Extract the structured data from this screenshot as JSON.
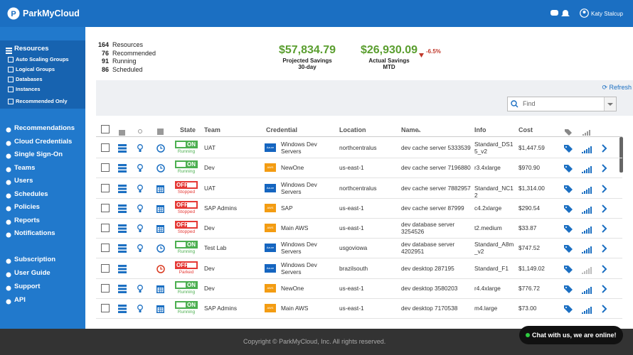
{
  "header": {
    "brand": "ParkMyCloud",
    "user": "Katy Stalcup"
  },
  "sidebar": {
    "resources": {
      "title": "Resources",
      "items": [
        "Auto Scaling Groups",
        "Logical Groups",
        "Databases",
        "Instances"
      ],
      "filter": "Recommended Only"
    },
    "nav": [
      "Recommendations",
      "Cloud Credentials",
      "Single Sign-On",
      "Teams",
      "Users",
      "Schedules",
      "Policies",
      "Reports",
      "Notifications"
    ],
    "help": [
      "Subscription",
      "User Guide",
      "Support",
      "API"
    ]
  },
  "summary": {
    "counts": [
      {
        "value": 164,
        "label": "Resources"
      },
      {
        "value": 76,
        "label": "Recommended"
      },
      {
        "value": 91,
        "label": "Running"
      },
      {
        "value": 86,
        "label": "Scheduled"
      }
    ],
    "projected": {
      "amount": "$57,834.79",
      "label": "Projected Savings",
      "period": "30-day"
    },
    "actual": {
      "amount": "$26,930.09",
      "change": "-6.5%",
      "label": "Actual Savings",
      "period": "MTD"
    }
  },
  "toolbar": {
    "refresh": "Refresh",
    "find": "Find"
  },
  "table": {
    "columns": [
      "State",
      "Team",
      "Credential",
      "Location",
      "Name",
      "Info",
      "Cost"
    ],
    "rows": [
      {
        "state": "ON",
        "status": "Running",
        "team": "UAT",
        "provider": "Azure",
        "credential": "Windows Dev Servers",
        "location": "northcentralus",
        "name": "dev cache server 5333539",
        "info": "Standard_DS15_v2",
        "cost": "$1,447.59"
      },
      {
        "state": "ON",
        "status": "Running",
        "team": "Dev",
        "provider": "AWS",
        "credential": "NewOne",
        "location": "us-east-1",
        "name": "dev cache server 7196880",
        "info": "r3.4xlarge",
        "cost": "$970.90"
      },
      {
        "state": "OFF",
        "status": "Stopped",
        "team": "UAT",
        "provider": "Azure",
        "credential": "Windows Dev Servers",
        "location": "northcentralus",
        "name": "dev cache server 7882957",
        "info": "Standard_NC12",
        "cost": "$1,314.00"
      },
      {
        "state": "OFF",
        "status": "Stopped",
        "team": "SAP Admins",
        "provider": "AWS",
        "credential": "SAP",
        "location": "us-east-1",
        "name": "dev cache server 87999",
        "info": "c4.2xlarge",
        "cost": "$290.54"
      },
      {
        "state": "OFF",
        "status": "Stopped",
        "team": "Dev",
        "provider": "AWS",
        "credential": "Main AWS",
        "location": "us-east-1",
        "name": "dev database server 3254526",
        "info": "t2.medium",
        "cost": "$33.87"
      },
      {
        "state": "ON",
        "status": "Running",
        "team": "Test Lab",
        "provider": "Azure",
        "credential": "Windows Dev Servers",
        "location": "usgoviowa",
        "name": "dev database server 4202951",
        "info": "Standard_A8m_v2",
        "cost": "$747.52"
      },
      {
        "state": "OFF",
        "status": "Parked",
        "team": "Dev",
        "provider": "Azure",
        "credential": "Windows Dev Servers",
        "location": "brazilsouth",
        "name": "dev desktop 287195",
        "info": "Standard_F1",
        "cost": "$1,149.02"
      },
      {
        "state": "ON",
        "status": "Running",
        "team": "Dev",
        "provider": "AWS",
        "credential": "NewOne",
        "location": "us-east-1",
        "name": "dev desktop 3580203",
        "info": "r4.4xlarge",
        "cost": "$776.72"
      },
      {
        "state": "ON",
        "status": "Running",
        "team": "SAP Admins",
        "provider": "AWS",
        "credential": "Main AWS",
        "location": "us-east-1",
        "name": "dev desktop 7170538",
        "info": "m4.large",
        "cost": "$73.00"
      }
    ]
  },
  "footer": {
    "copyright": "Copyright © ParkMyCloud, Inc. All rights reserved.",
    "chat": "Chat with us, we are online!"
  }
}
